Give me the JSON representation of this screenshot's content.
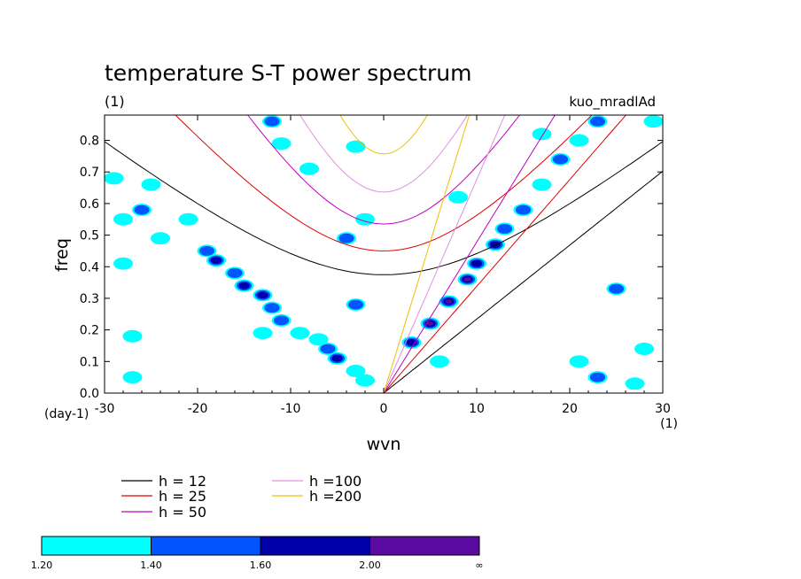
{
  "chart_data": {
    "type": "heatmap",
    "title": "temperature S-T power spectrum",
    "subtitle": "(1)",
    "run_label": "kuo_mradlAd",
    "xlabel": "wvn",
    "x_unit": "(1)",
    "ylabel": "freq",
    "y_unit": "(day-1)",
    "xlim": [
      -30,
      30
    ],
    "ylim": [
      0.0,
      0.88
    ],
    "x_ticks": [
      "-30",
      "-20",
      "-10",
      "0",
      "10",
      "20",
      "30"
    ],
    "x_tick_values": [
      -30,
      -20,
      -10,
      0,
      10,
      20,
      30
    ],
    "y_ticks": [
      "0.0",
      "0.1",
      "0.2",
      "0.3",
      "0.4",
      "0.5",
      "0.6",
      "0.7",
      "0.8"
    ],
    "y_tick_values": [
      0.0,
      0.1,
      0.2,
      0.3,
      0.4,
      0.5,
      0.6,
      0.7,
      0.8
    ],
    "dispersion_curves": [
      {
        "label": "h = 12",
        "h": 12,
        "color": "#000000"
      },
      {
        "label": "h = 25",
        "h": 25,
        "color": "#e00000"
      },
      {
        "label": "h = 50",
        "h": 50,
        "color": "#c000c0"
      },
      {
        "label": "h =100",
        "h": 100,
        "color": "#e090e0"
      },
      {
        "label": "h =200",
        "h": 200,
        "color": "#f0c000"
      }
    ],
    "color_levels": {
      "labels": [
        "1.20",
        "1.40",
        "1.60",
        "2.00",
        "∞"
      ],
      "colors": [
        "#00ffff",
        "#0055ff",
        "#0000aa",
        "#5a0aa0"
      ]
    },
    "power_regions": [
      {
        "wvn": -29,
        "freq": 0.68,
        "level": 1
      },
      {
        "wvn": -28,
        "freq": 0.55,
        "level": 1
      },
      {
        "wvn": -28,
        "freq": 0.41,
        "level": 1
      },
      {
        "wvn": -27,
        "freq": 0.18,
        "level": 1
      },
      {
        "wvn": -25,
        "freq": 0.66,
        "level": 1
      },
      {
        "wvn": -26,
        "freq": 0.58,
        "level": 2
      },
      {
        "wvn": -24,
        "freq": 0.49,
        "level": 1
      },
      {
        "wvn": -21,
        "freq": 0.55,
        "level": 1
      },
      {
        "wvn": -19,
        "freq": 0.45,
        "level": 2
      },
      {
        "wvn": -18,
        "freq": 0.42,
        "level": 3
      },
      {
        "wvn": -16,
        "freq": 0.38,
        "level": 2
      },
      {
        "wvn": -15,
        "freq": 0.34,
        "level": 3
      },
      {
        "wvn": -13,
        "freq": 0.31,
        "level": 3
      },
      {
        "wvn": -12,
        "freq": 0.27,
        "level": 2
      },
      {
        "wvn": -11,
        "freq": 0.23,
        "level": 2
      },
      {
        "wvn": -9,
        "freq": 0.19,
        "level": 1
      },
      {
        "wvn": -7,
        "freq": 0.17,
        "level": 1
      },
      {
        "wvn": -6,
        "freq": 0.14,
        "level": 2
      },
      {
        "wvn": -5,
        "freq": 0.11,
        "level": 3
      },
      {
        "wvn": -3,
        "freq": 0.07,
        "level": 1
      },
      {
        "wvn": -2,
        "freq": 0.04,
        "level": 1
      },
      {
        "wvn": -13,
        "freq": 0.19,
        "level": 1
      },
      {
        "wvn": -3,
        "freq": 0.28,
        "level": 2
      },
      {
        "wvn": -4,
        "freq": 0.49,
        "level": 2
      },
      {
        "wvn": -2,
        "freq": 0.55,
        "level": 1
      },
      {
        "wvn": -3,
        "freq": 0.78,
        "level": 1
      },
      {
        "wvn": -12,
        "freq": 0.86,
        "level": 2
      },
      {
        "wvn": -11,
        "freq": 0.79,
        "level": 1
      },
      {
        "wvn": -8,
        "freq": 0.71,
        "level": 1
      },
      {
        "wvn": 3,
        "freq": 0.16,
        "level": 3
      },
      {
        "wvn": 5,
        "freq": 0.22,
        "level": 4
      },
      {
        "wvn": 7,
        "freq": 0.29,
        "level": 4
      },
      {
        "wvn": 9,
        "freq": 0.36,
        "level": 4
      },
      {
        "wvn": 10,
        "freq": 0.41,
        "level": 3
      },
      {
        "wvn": 12,
        "freq": 0.47,
        "level": 3
      },
      {
        "wvn": 13,
        "freq": 0.52,
        "level": 2
      },
      {
        "wvn": 15,
        "freq": 0.58,
        "level": 2
      },
      {
        "wvn": 17,
        "freq": 0.66,
        "level": 1
      },
      {
        "wvn": 19,
        "freq": 0.74,
        "level": 2
      },
      {
        "wvn": 21,
        "freq": 0.8,
        "level": 1
      },
      {
        "wvn": 23,
        "freq": 0.86,
        "level": 2
      },
      {
        "wvn": 8,
        "freq": 0.62,
        "level": 1
      },
      {
        "wvn": 17,
        "freq": 0.82,
        "level": 1
      },
      {
        "wvn": 25,
        "freq": 0.33,
        "level": 2
      },
      {
        "wvn": 27,
        "freq": 0.03,
        "level": 1
      },
      {
        "wvn": 23,
        "freq": 0.05,
        "level": 2
      },
      {
        "wvn": 21,
        "freq": 0.1,
        "level": 1
      },
      {
        "wvn": -27,
        "freq": 0.05,
        "level": 1
      },
      {
        "wvn": 6,
        "freq": 0.1,
        "level": 1
      },
      {
        "wvn": 29,
        "freq": 0.86,
        "level": 1
      },
      {
        "wvn": 28,
        "freq": 0.14,
        "level": 1
      }
    ]
  }
}
